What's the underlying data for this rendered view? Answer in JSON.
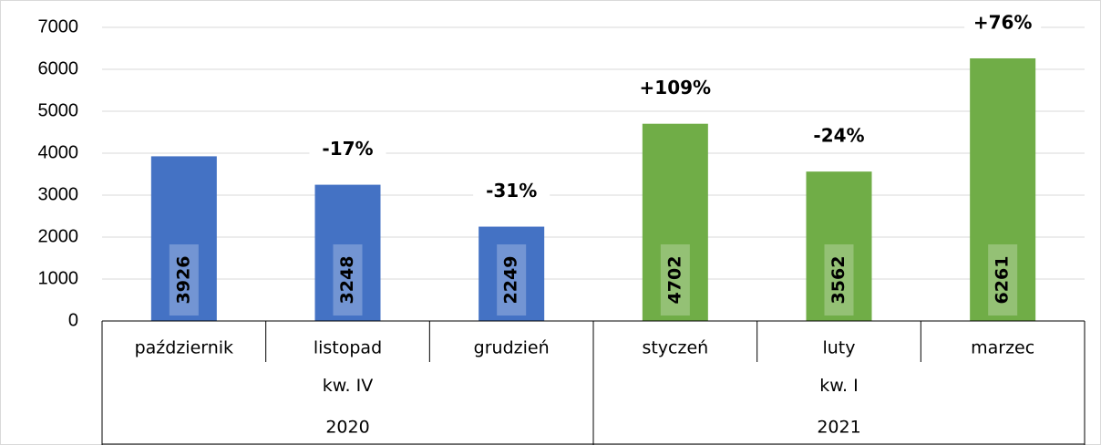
{
  "chart_data": {
    "type": "bar",
    "categories": [
      "październik",
      "listopad",
      "grudzień",
      "styczeń",
      "luty",
      "marzec"
    ],
    "values": [
      3926,
      3248,
      2249,
      4702,
      3562,
      6261
    ],
    "colors": [
      "#4472c4",
      "#4472c4",
      "#4472c4",
      "#70ad47",
      "#70ad47",
      "#70ad47"
    ],
    "annotations": [
      null,
      "-17%",
      "-31%",
      "+109%",
      "-24%",
      "+76%"
    ],
    "groups": [
      {
        "label": "kw. IV",
        "span": 3
      },
      {
        "label": "kw. I",
        "span": 3
      }
    ],
    "supergroups": [
      {
        "label": "2020",
        "span": 3
      },
      {
        "label": "2021",
        "span": 3
      }
    ],
    "ylim": [
      0,
      7000
    ],
    "yticks": [
      0,
      1000,
      2000,
      3000,
      4000,
      5000,
      6000,
      7000
    ],
    "grid": true
  }
}
